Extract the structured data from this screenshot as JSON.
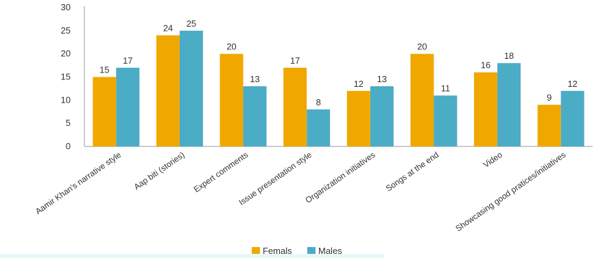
{
  "chart_data": {
    "type": "bar",
    "title": "",
    "xlabel": "",
    "ylabel": "",
    "ylim": [
      0,
      30
    ],
    "yticks": [
      0,
      5,
      10,
      15,
      20,
      25,
      30
    ],
    "grid": false,
    "legend_position": "bottom",
    "categories": [
      "Aamir Khan's narrative style",
      "Aap biti (stories)",
      "Expert comments",
      "Issue presentation style",
      "Organization initiatives",
      "Songs at the end",
      "Video",
      "Showcasing good pratices/initiatives"
    ],
    "series": [
      {
        "name": "Femals",
        "color": "#f0a800",
        "values": [
          15,
          24,
          20,
          17,
          12,
          20,
          16,
          9
        ]
      },
      {
        "name": "Males",
        "color": "#4bacc6",
        "values": [
          17,
          25,
          13,
          8,
          13,
          11,
          18,
          12
        ]
      }
    ]
  }
}
